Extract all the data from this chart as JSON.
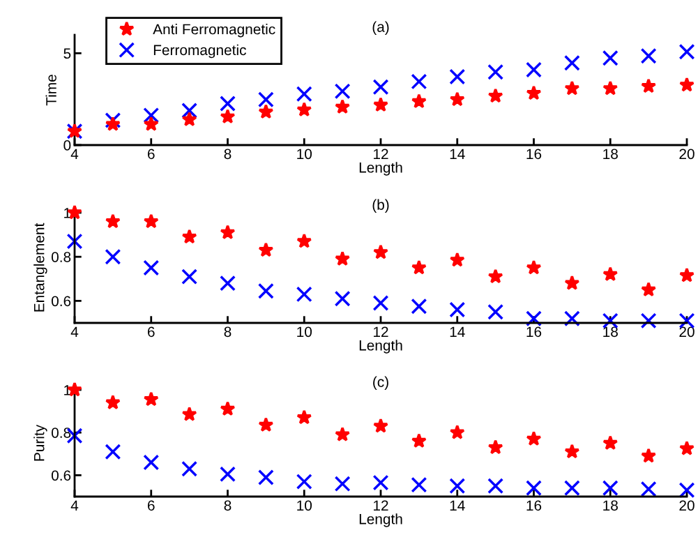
{
  "chart_data": [
    {
      "type": "scatter",
      "title": "(a)",
      "xlabel": "Length",
      "ylabel": "Time",
      "x": [
        4,
        5,
        6,
        7,
        8,
        9,
        10,
        11,
        12,
        13,
        14,
        15,
        16,
        17,
        18,
        19,
        20
      ],
      "xlim": [
        4,
        20
      ],
      "xticks": [
        4,
        6,
        8,
        10,
        12,
        14,
        16,
        18,
        20
      ],
      "ylim": [
        0,
        6
      ],
      "yticks": [
        0,
        5
      ],
      "legend": "top left",
      "grid": false,
      "series": [
        {
          "name": "Anti Ferromagnetic",
          "color": "#ff0000",
          "marker": "star",
          "values": [
            0.75,
            1.13,
            1.13,
            1.39,
            1.54,
            1.8,
            1.92,
            2.07,
            2.18,
            2.37,
            2.48,
            2.67,
            2.82,
            3.08,
            3.08,
            3.2,
            3.27
          ]
        },
        {
          "name": "Ferromagnetic",
          "color": "#0000ff",
          "marker": "cross",
          "values": [
            0.75,
            1.35,
            1.62,
            1.88,
            2.26,
            2.48,
            2.78,
            2.93,
            3.16,
            3.46,
            3.72,
            3.98,
            4.1,
            4.47,
            4.74,
            4.85,
            5.08
          ]
        }
      ]
    },
    {
      "type": "scatter",
      "title": "(b)",
      "xlabel": "Length",
      "ylabel": "Entanglement",
      "x": [
        4,
        5,
        6,
        7,
        8,
        9,
        10,
        11,
        12,
        13,
        14,
        15,
        16,
        17,
        18,
        19,
        20
      ],
      "xlim": [
        4,
        20
      ],
      "xticks": [
        4,
        6,
        8,
        10,
        12,
        14,
        16,
        18,
        20
      ],
      "ylim": [
        0.5,
        1
      ],
      "yticks": [
        0.6,
        0.8,
        1
      ],
      "grid": false,
      "series": [
        {
          "color": "#ff0000",
          "marker": "star",
          "values": [
            1.0,
            0.96,
            0.96,
            0.89,
            0.91,
            0.83,
            0.87,
            0.79,
            0.82,
            0.75,
            0.785,
            0.71,
            0.75,
            0.68,
            0.72,
            0.65,
            0.715
          ]
        },
        {
          "color": "#0000ff",
          "marker": "cross",
          "values": [
            0.87,
            0.8,
            0.75,
            0.71,
            0.68,
            0.645,
            0.63,
            0.61,
            0.59,
            0.575,
            0.56,
            0.55,
            0.52,
            0.52,
            0.51,
            0.51,
            0.51
          ]
        }
      ]
    },
    {
      "type": "scatter",
      "title": "(c)",
      "xlabel": "Length",
      "ylabel": "Purity",
      "x": [
        4,
        5,
        6,
        7,
        8,
        9,
        10,
        11,
        12,
        13,
        14,
        15,
        16,
        17,
        18,
        19,
        20
      ],
      "xlim": [
        4,
        20
      ],
      "xticks": [
        4,
        6,
        8,
        10,
        12,
        14,
        16,
        18,
        20
      ],
      "ylim": [
        0.5,
        1
      ],
      "yticks": [
        0.6,
        0.8,
        1
      ],
      "grid": false,
      "series": [
        {
          "color": "#ff0000",
          "marker": "star",
          "values": [
            1.0,
            0.94,
            0.955,
            0.885,
            0.91,
            0.835,
            0.87,
            0.79,
            0.83,
            0.76,
            0.8,
            0.73,
            0.77,
            0.71,
            0.75,
            0.69,
            0.725
          ]
        },
        {
          "color": "#0000ff",
          "marker": "cross",
          "values": [
            0.785,
            0.71,
            0.66,
            0.63,
            0.605,
            0.59,
            0.57,
            0.56,
            0.565,
            0.555,
            0.55,
            0.55,
            0.54,
            0.54,
            0.54,
            0.535,
            0.53
          ]
        }
      ]
    }
  ]
}
